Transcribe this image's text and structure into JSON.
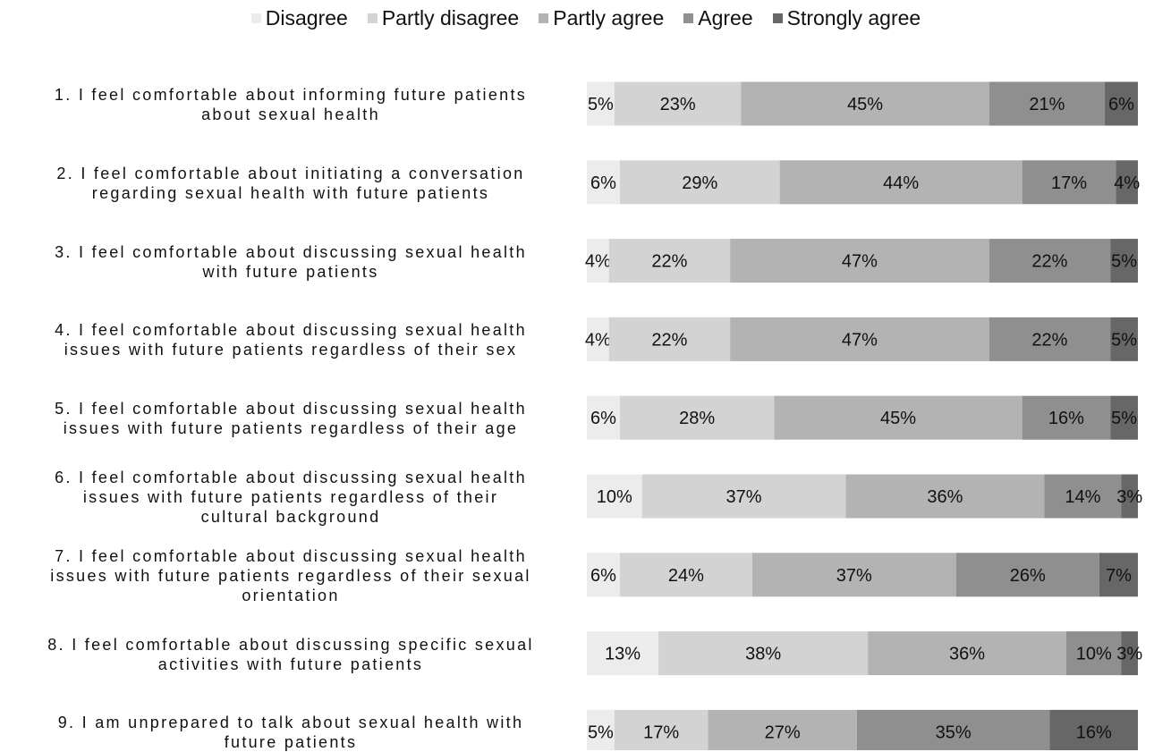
{
  "chart_data": {
    "type": "bar",
    "orientation": "horizontal",
    "stacked": true,
    "percent": true,
    "legend_position": "top-center",
    "categories": [
      "1. I feel comfortable about informing future patients about sexual health",
      "2. I feel comfortable about initiating a conversation regarding sexual health with future patients",
      "3. I feel comfortable about discussing sexual health with future patients",
      "4. I feel comfortable about discussing sexual health issues with future patients regardless of their sex",
      "5. I feel comfortable about discussing sexual health issues with future patients regardless of their age",
      "6. I feel comfortable about discussing sexual health issues with future patients regardless of their cultural background",
      "7. I feel comfortable about discussing sexual health issues with future patients regardless of their sexual orientation",
      "8. I feel comfortable about discussing specific sexual activities with future patients",
      "9. I am unprepared to talk about sexual health with future patients"
    ],
    "series": [
      {
        "name": "Disagree",
        "color": "#ececec",
        "values": [
          5,
          6,
          4,
          4,
          6,
          10,
          6,
          13,
          5
        ]
      },
      {
        "name": "Partly disagree",
        "color": "#d3d3d3",
        "values": [
          23,
          29,
          22,
          22,
          28,
          37,
          24,
          38,
          17
        ]
      },
      {
        "name": "Partly agree",
        "color": "#b3b3b3",
        "values": [
          45,
          44,
          47,
          47,
          45,
          36,
          37,
          36,
          27
        ]
      },
      {
        "name": "Agree",
        "color": "#8f8f8f",
        "values": [
          21,
          17,
          22,
          22,
          16,
          14,
          26,
          10,
          35
        ]
      },
      {
        "name": "Strongly agree",
        "color": "#676767",
        "values": [
          6,
          4,
          5,
          5,
          5,
          3,
          7,
          3,
          16
        ]
      }
    ]
  }
}
